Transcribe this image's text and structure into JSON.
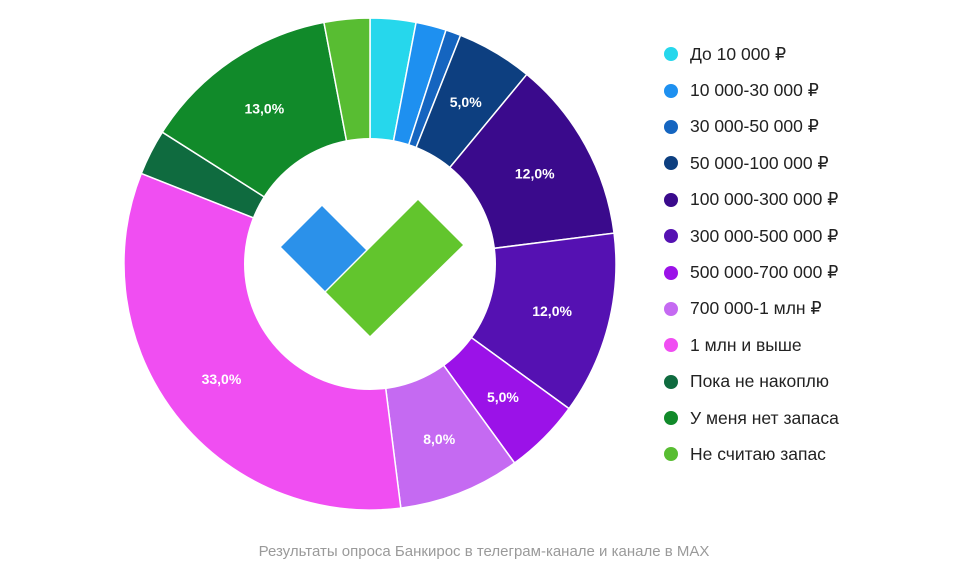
{
  "chart_data": {
    "type": "pie",
    "variant": "donut",
    "legend_position": "right",
    "caption": "Результаты опроса Банкирос в телеграм-канале и канале в MAX",
    "slices": [
      {
        "label": "До 10 000 ₽",
        "value": 3,
        "color": "#26d7ec",
        "value_label": ""
      },
      {
        "label": "10 000-30 000 ₽",
        "value": 2,
        "color": "#1e90f0",
        "value_label": ""
      },
      {
        "label": "30 000-50 000 ₽",
        "value": 1,
        "color": "#1565c0",
        "value_label": ""
      },
      {
        "label": "50 000-100 000 ₽",
        "value": 5,
        "color": "#0d3f80",
        "value_label": "5,0%"
      },
      {
        "label": "100 000-300 000 ₽",
        "value": 12,
        "color": "#3a0a8c",
        "value_label": "12,0%"
      },
      {
        "label": "300 000-500 000 ₽",
        "value": 12,
        "color": "#5511b2",
        "value_label": "12,0%"
      },
      {
        "label": "500 000-700 000 ₽",
        "value": 5,
        "color": "#9b12e8",
        "value_label": "5,0%"
      },
      {
        "label": "700 000-1 млн ₽",
        "value": 8,
        "color": "#c56af2",
        "value_label": "8,0%"
      },
      {
        "label": "1 млн и выше",
        "value": 33,
        "color": "#f04ef2",
        "value_label": "33,0%"
      },
      {
        "label": "Пока не накоплю",
        "value": 3,
        "color": "#0f6b3f",
        "value_label": ""
      },
      {
        "label": "У меня нет запаса",
        "value": 13,
        "color": "#118a2a",
        "value_label": "13,0%"
      },
      {
        "label": "Не считаю запас",
        "value": 3,
        "color": "#58bd32",
        "value_label": ""
      }
    ],
    "center_logo": {
      "name": "checkmark-logo",
      "colors": {
        "left": "#2b91ea",
        "right": "#62c52d"
      }
    }
  }
}
